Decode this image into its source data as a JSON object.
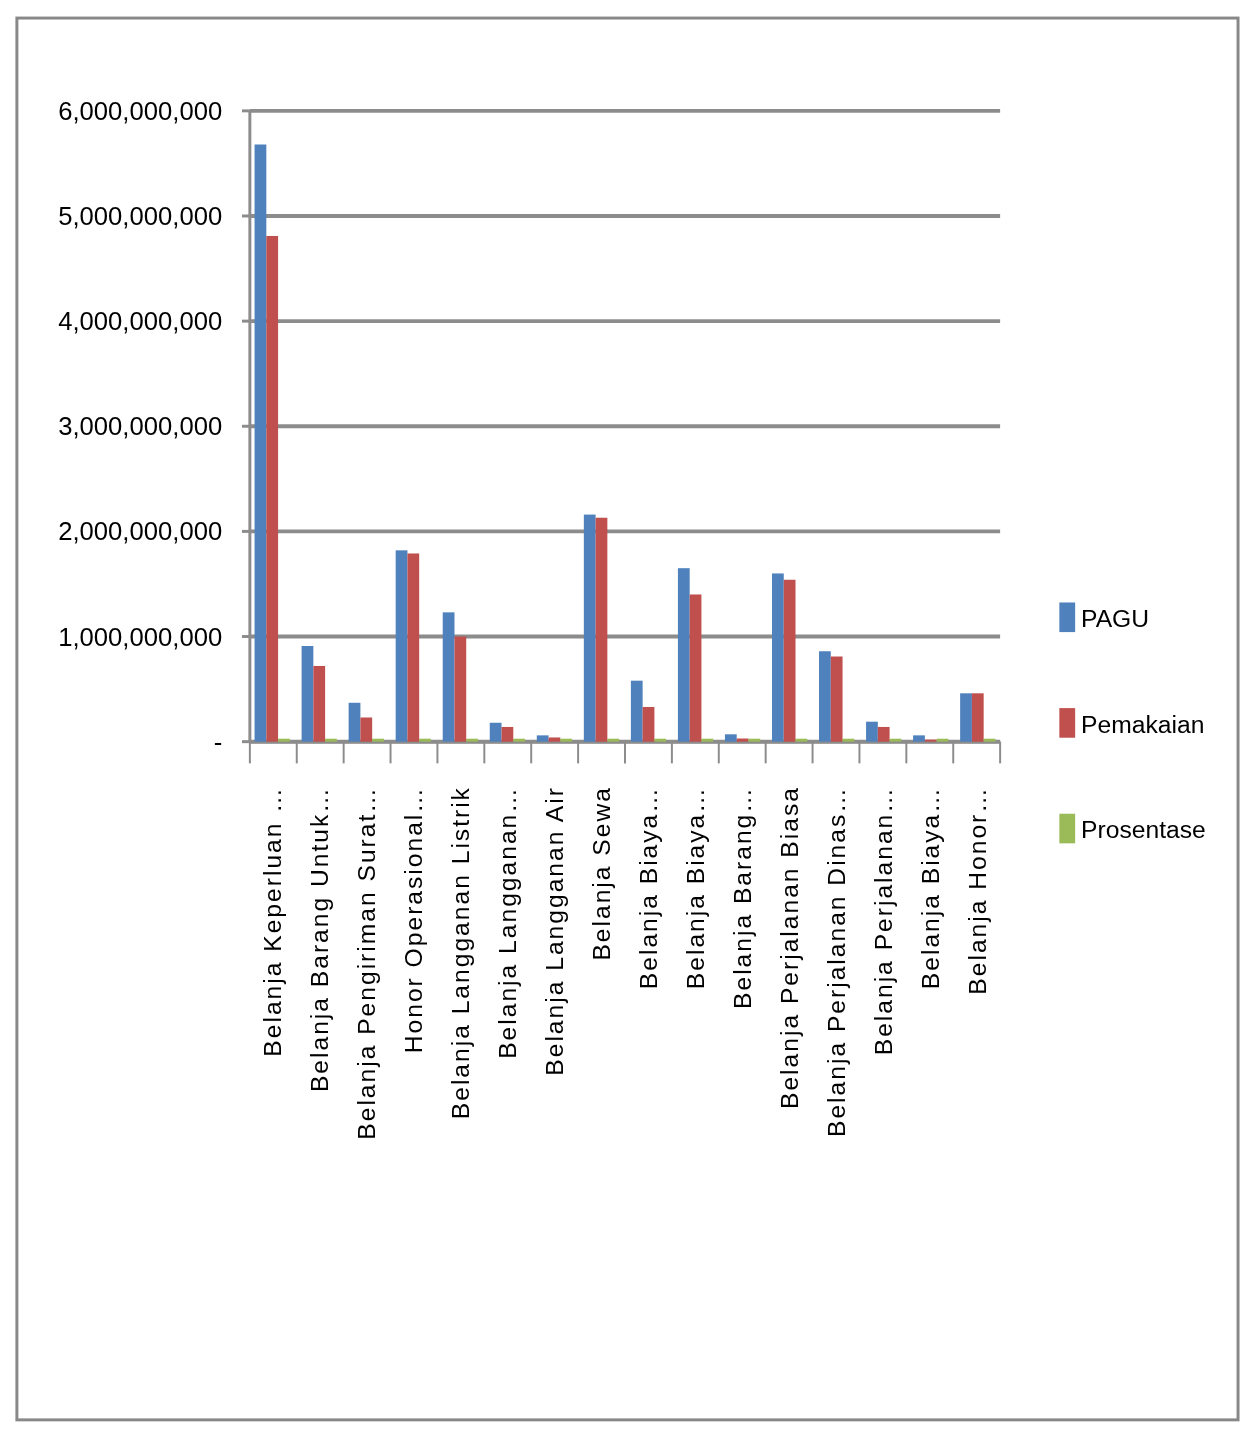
{
  "chart_data": {
    "type": "bar",
    "categories": [
      "Belanja Keperluan …",
      "Belanja Barang Untuk…",
      "Belanja Pengiriman Surat…",
      "Honor Operasional…",
      "Belanja Langganan Listrik",
      "Belanja Langganan…",
      "Belanja Langganan Air",
      "Belanja Sewa",
      "Belanja Biaya…",
      "Belanja Biaya…",
      "Belanja Barang…",
      "Belanja Perjalanan Biasa",
      "Belanja Perjalanan Dinas…",
      "Belanja Perjalanan…",
      "Belanja Biaya…",
      "Belanja Honor…"
    ],
    "series": [
      {
        "name": "PAGU",
        "color": "#4f81bd",
        "values": [
          5680000000,
          910000000,
          370000000,
          1820000000,
          1230000000,
          180000000,
          60000000,
          2160000000,
          580000000,
          1650000000,
          70000000,
          1600000000,
          860000000,
          190000000,
          60000000,
          460000000
        ]
      },
      {
        "name": "Pemakaian",
        "color": "#c0504d",
        "values": [
          4810000000,
          720000000,
          230000000,
          1790000000,
          1000000000,
          140000000,
          40000000,
          2130000000,
          330000000,
          1400000000,
          30000000,
          1540000000,
          810000000,
          140000000,
          20000000,
          460000000
        ]
      },
      {
        "name": "Prosentase",
        "color": "#9bbb59",
        "values": [
          0,
          0,
          0,
          0,
          0,
          0,
          0,
          0,
          0,
          0,
          0,
          0,
          0,
          0,
          0,
          0
        ]
      }
    ],
    "ylim": [
      0,
      6000000000
    ],
    "yticks": [
      {
        "value": 0,
        "label": "-"
      },
      {
        "value": 1000000000,
        "label": "1,000,000,000"
      },
      {
        "value": 2000000000,
        "label": "2,000,000,000"
      },
      {
        "value": 3000000000,
        "label": "3,000,000,000"
      },
      {
        "value": 4000000000,
        "label": "4,000,000,000"
      },
      {
        "value": 5000000000,
        "label": "5,000,000,000"
      },
      {
        "value": 6000000000,
        "label": "6,000,000,000"
      }
    ],
    "grid": "y",
    "legend": "right"
  }
}
